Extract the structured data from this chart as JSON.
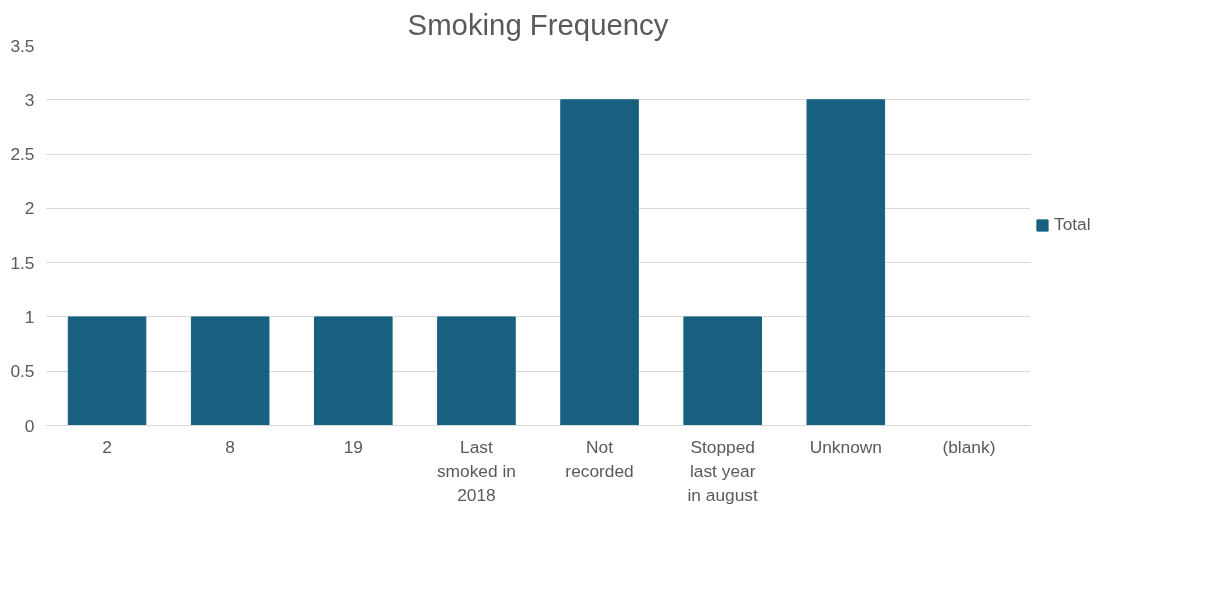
{
  "chart_data": {
    "type": "bar",
    "title": "Smoking Frequency",
    "categories": [
      "2",
      "8",
      "19",
      "Last smoked in 2018",
      "Not recorded",
      "Stopped last year in august",
      "Unknown",
      "(blank)"
    ],
    "series": [
      {
        "name": "Total",
        "color": "#17607f",
        "values": [
          1,
          1,
          1,
          1,
          3,
          1,
          3,
          null
        ]
      }
    ],
    "ylim": [
      0,
      3.5
    ],
    "yticks": [
      0,
      0.5,
      1,
      1.5,
      2,
      2.5,
      3,
      3.5
    ],
    "grid": "y",
    "legend": "right"
  }
}
